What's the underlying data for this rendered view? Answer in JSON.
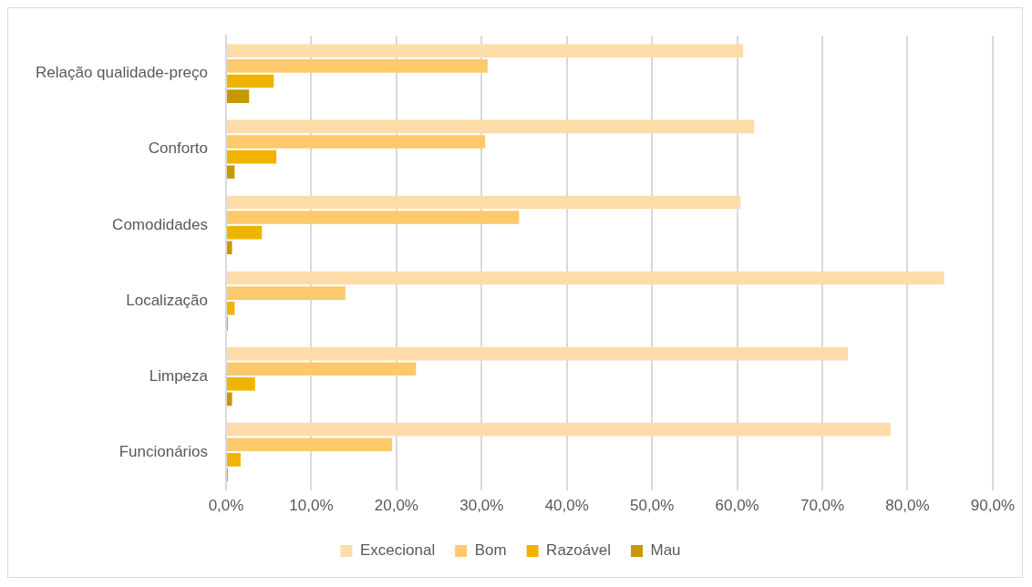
{
  "chart_data": {
    "type": "bar",
    "orientation": "horizontal",
    "categories": [
      "Relação qualidade-preço",
      "Conforto",
      "Comodidades",
      "Localização",
      "Limpeza",
      "Funcionários"
    ],
    "series": [
      {
        "name": "Excecional",
        "color": "#fedcaa",
        "values": [
          60.7,
          62.0,
          60.4,
          84.3,
          73.0,
          78.0
        ]
      },
      {
        "name": "Bom",
        "color": "#fec96c",
        "values": [
          30.7,
          30.4,
          34.4,
          14.0,
          22.3,
          19.5
        ]
      },
      {
        "name": "Razoável",
        "color": "#f0b400",
        "values": [
          5.6,
          5.9,
          4.2,
          1.0,
          3.4,
          1.7
        ]
      },
      {
        "name": "Mau",
        "color": "#c89800",
        "values": [
          2.7,
          1.0,
          0.7,
          0.2,
          0.7,
          0.2
        ]
      }
    ],
    "xlim": [
      0,
      90
    ],
    "xticks": [
      {
        "value": 0,
        "label": "0,0%"
      },
      {
        "value": 10,
        "label": "10,0%"
      },
      {
        "value": 20,
        "label": "20,0%"
      },
      {
        "value": 30,
        "label": "30,0%"
      },
      {
        "value": 40,
        "label": "40,0%"
      },
      {
        "value": 50,
        "label": "50,0%"
      },
      {
        "value": 60,
        "label": "60,0%"
      },
      {
        "value": 70,
        "label": "70,0%"
      },
      {
        "value": 80,
        "label": "80,0%"
      },
      {
        "value": 90,
        "label": "90,0%"
      }
    ],
    "grid": "x",
    "legend": "bottom"
  }
}
